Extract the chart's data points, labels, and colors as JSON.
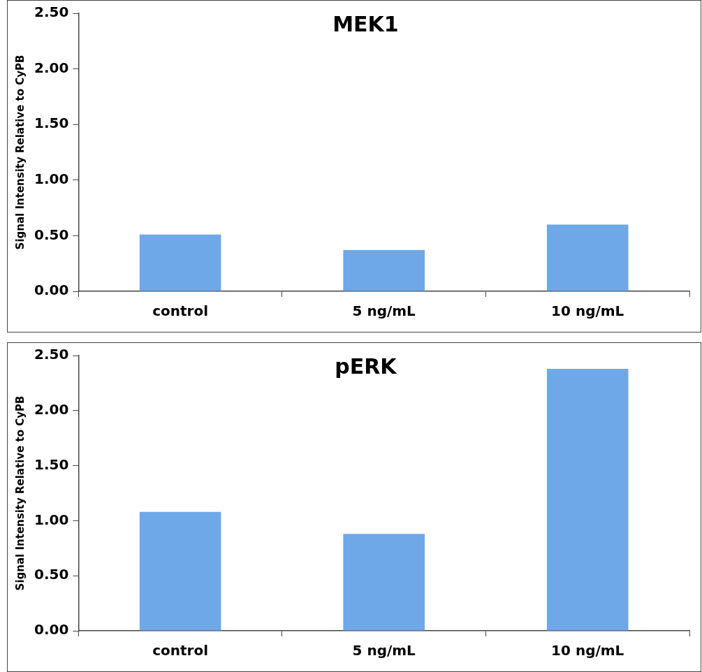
{
  "chart_data": [
    {
      "type": "bar",
      "title": "MEK1",
      "ylabel": "Signal Intensity Relative to CyPB",
      "categories": [
        "control",
        "5 ng/mL",
        "10 ng/mL"
      ],
      "values": [
        0.51,
        0.37,
        0.6
      ],
      "color": "#6fa8e8",
      "ylim": [
        0,
        2.5
      ],
      "yticks": [
        {
          "value": 0,
          "label": "0.00"
        },
        {
          "value": 0.5,
          "label": "0.50"
        },
        {
          "value": 1,
          "label": "1.00"
        },
        {
          "value": 1.5,
          "label": "1.50"
        },
        {
          "value": 2,
          "label": "2.00"
        },
        {
          "value": 2.5,
          "label": "2.50"
        }
      ]
    },
    {
      "type": "bar",
      "title": "pERK",
      "ylabel": "Signal Intensity Relative to CyPB",
      "categories": [
        "control",
        "5 ng/mL",
        "10 ng/mL"
      ],
      "values": [
        1.08,
        0.88,
        2.38
      ],
      "color": "#6fa8e8",
      "ylim": [
        0,
        2.5
      ],
      "yticks": [
        {
          "value": 0,
          "label": "0.00"
        },
        {
          "value": 0.5,
          "label": "0.50"
        },
        {
          "value": 1,
          "label": "1.00"
        },
        {
          "value": 1.5,
          "label": "1.50"
        },
        {
          "value": 2,
          "label": "2.00"
        },
        {
          "value": 2.5,
          "label": "2.50"
        }
      ]
    }
  ]
}
